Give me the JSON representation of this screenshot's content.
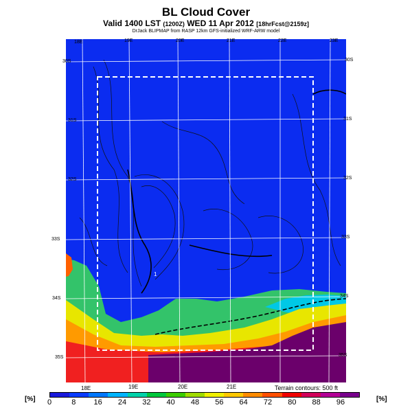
{
  "header": {
    "title": "BL Cloud Cover",
    "subtitle_main": "Valid 1400 LST",
    "subtitle_small": "(1200Z)",
    "subtitle_date": "WED 11 Apr 2012",
    "subtitle_fcst": "[18hrFcst@2159z]",
    "credit": "DrJack BLIPMAP from RASP 12km GFS-initialized WRF-ARW model"
  },
  "map": {
    "lon_labels_top": [
      "18E",
      "19E",
      "20E",
      "21E",
      "22E",
      "23E"
    ],
    "lon_labels_bottom": [
      "18E",
      "19E",
      "20E",
      "21E"
    ],
    "lat_labels_left": [
      "30S",
      "31S",
      "32S",
      "33S",
      "34S",
      "35S"
    ],
    "lat_labels_right": [
      "30S",
      "31S",
      "32S",
      "33S",
      "34S",
      "35S"
    ],
    "point_label": "1",
    "terrain_note": "Terrain contours: 500 ft",
    "ocean_color": "#6b006b",
    "land_clear_color": "#0b2cf0"
  },
  "colorbar": {
    "unit_left": "[%]",
    "unit_right": "[%]",
    "labels": [
      "0",
      "8",
      "16",
      "24",
      "32",
      "40",
      "48",
      "56",
      "64",
      "72",
      "80",
      "88",
      "96"
    ],
    "colors": [
      "#1a1adc",
      "#0a3cff",
      "#0078ff",
      "#00b4ff",
      "#00d2aa",
      "#00c83c",
      "#3ccd00",
      "#a0dc00",
      "#f0f000",
      "#ffc800",
      "#ff8c00",
      "#ff5000",
      "#f00000",
      "#d2005a",
      "#b40096",
      "#78008c"
    ]
  }
}
